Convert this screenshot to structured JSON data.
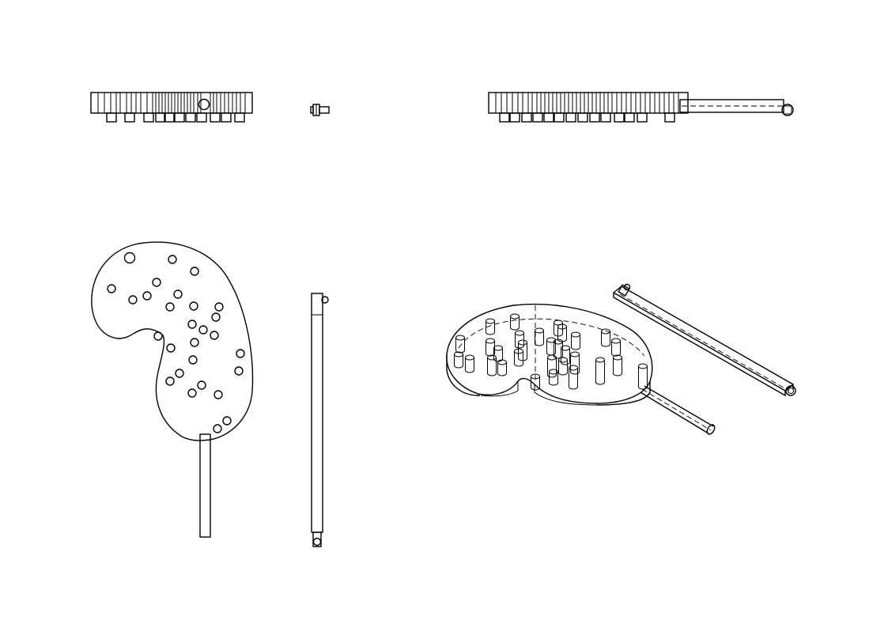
{
  "sheet": {
    "background": "#ffffff",
    "line_color": "#000000",
    "views": [
      {
        "id": "front-view",
        "kind": "orthographic",
        "label": ""
      },
      {
        "id": "side-view",
        "kind": "orthographic",
        "label": ""
      },
      {
        "id": "front-view-with-handle",
        "kind": "orthographic",
        "label": ""
      },
      {
        "id": "top-view",
        "kind": "orthographic",
        "label": ""
      },
      {
        "id": "side-view-long",
        "kind": "orthographic",
        "label": ""
      },
      {
        "id": "isometric-view",
        "kind": "isometric",
        "label": ""
      }
    ]
  }
}
